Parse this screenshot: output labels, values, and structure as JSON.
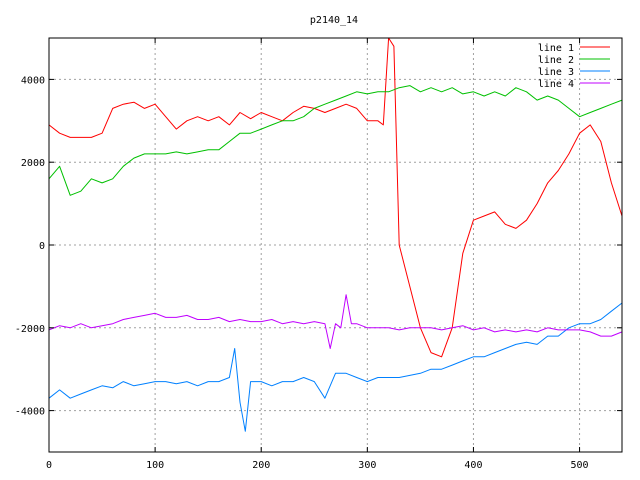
{
  "chart_data": {
    "type": "line",
    "title": "p2140_14",
    "xlabel": "",
    "ylabel": "",
    "xlim": [
      0,
      540
    ],
    "ylim": [
      -5000,
      5000
    ],
    "xticks": [
      0,
      100,
      200,
      300,
      400,
      500
    ],
    "yticks": [
      -4000,
      -2000,
      0,
      2000,
      4000
    ],
    "grid": true,
    "legend_position": "top-right",
    "series": [
      {
        "name": "line 1",
        "color": "#ff0000",
        "x": [
          0,
          10,
          20,
          30,
          40,
          50,
          60,
          70,
          80,
          90,
          100,
          110,
          120,
          130,
          140,
          150,
          160,
          170,
          180,
          190,
          200,
          210,
          220,
          230,
          240,
          250,
          260,
          270,
          280,
          290,
          300,
          310,
          315,
          320,
          325,
          330,
          340,
          350,
          360,
          370,
          380,
          390,
          400,
          410,
          420,
          430,
          440,
          450,
          460,
          470,
          480,
          490,
          500,
          510,
          520,
          530,
          540
        ],
        "values": [
          2900,
          2700,
          2600,
          2600,
          2600,
          2700,
          3300,
          3400,
          3450,
          3300,
          3400,
          3100,
          2800,
          3000,
          3100,
          3000,
          3100,
          2900,
          3200,
          3050,
          3200,
          3100,
          3000,
          3200,
          3350,
          3300,
          3200,
          3300,
          3400,
          3300,
          3000,
          3000,
          2900,
          5000,
          4800,
          0,
          -1000,
          -2000,
          -2600,
          -2700,
          -2000,
          -200,
          600,
          700,
          800,
          500,
          400,
          600,
          1000,
          1500,
          1800,
          2200,
          2700,
          2900,
          2500,
          1500,
          700
        ]
      },
      {
        "name": "line 2",
        "color": "#00c000",
        "x": [
          0,
          10,
          20,
          30,
          40,
          50,
          60,
          70,
          80,
          90,
          100,
          110,
          120,
          130,
          140,
          150,
          160,
          170,
          180,
          190,
          200,
          210,
          220,
          230,
          240,
          250,
          260,
          270,
          280,
          290,
          300,
          310,
          320,
          330,
          340,
          350,
          360,
          370,
          380,
          390,
          400,
          410,
          420,
          430,
          440,
          450,
          460,
          470,
          480,
          490,
          500,
          510,
          520,
          530,
          540
        ],
        "values": [
          1600,
          1900,
          1200,
          1300,
          1600,
          1500,
          1600,
          1900,
          2100,
          2200,
          2200,
          2200,
          2250,
          2200,
          2250,
          2300,
          2300,
          2500,
          2700,
          2700,
          2800,
          2900,
          3000,
          3000,
          3100,
          3300,
          3400,
          3500,
          3600,
          3700,
          3650,
          3700,
          3700,
          3800,
          3850,
          3700,
          3800,
          3700,
          3800,
          3650,
          3700,
          3600,
          3700,
          3600,
          3800,
          3700,
          3500,
          3600,
          3500,
          3300,
          3100,
          3200,
          3300,
          3400,
          3500
        ]
      },
      {
        "name": "line 3",
        "color": "#0080ff",
        "x": [
          0,
          10,
          20,
          30,
          40,
          50,
          60,
          70,
          80,
          90,
          100,
          110,
          120,
          130,
          140,
          150,
          160,
          170,
          175,
          180,
          185,
          190,
          200,
          210,
          220,
          230,
          240,
          250,
          260,
          270,
          280,
          290,
          300,
          310,
          320,
          330,
          340,
          350,
          360,
          370,
          380,
          390,
          400,
          410,
          420,
          430,
          440,
          450,
          460,
          470,
          480,
          490,
          500,
          510,
          520,
          530,
          540
        ],
        "values": [
          -3700,
          -3500,
          -3700,
          -3600,
          -3500,
          -3400,
          -3450,
          -3300,
          -3400,
          -3350,
          -3300,
          -3300,
          -3350,
          -3300,
          -3400,
          -3300,
          -3300,
          -3200,
          -2500,
          -3800,
          -4500,
          -3300,
          -3300,
          -3400,
          -3300,
          -3300,
          -3200,
          -3300,
          -3700,
          -3100,
          -3100,
          -3200,
          -3300,
          -3200,
          -3200,
          -3200,
          -3150,
          -3100,
          -3000,
          -3000,
          -2900,
          -2800,
          -2700,
          -2700,
          -2600,
          -2500,
          -2400,
          -2350,
          -2400,
          -2200,
          -2200,
          -2000,
          -1900,
          -1900,
          -1800,
          -1600,
          -1400
        ]
      },
      {
        "name": "line 4",
        "color": "#c000ff",
        "x": [
          0,
          10,
          20,
          30,
          40,
          50,
          60,
          70,
          80,
          90,
          100,
          110,
          120,
          130,
          140,
          150,
          160,
          170,
          180,
          190,
          200,
          210,
          220,
          230,
          240,
          250,
          260,
          265,
          270,
          275,
          280,
          285,
          290,
          300,
          310,
          320,
          330,
          340,
          350,
          360,
          370,
          380,
          390,
          400,
          410,
          420,
          430,
          440,
          450,
          460,
          470,
          480,
          490,
          500,
          510,
          520,
          530,
          540
        ],
        "values": [
          -2050,
          -1950,
          -2000,
          -1900,
          -2000,
          -1950,
          -1900,
          -1800,
          -1750,
          -1700,
          -1650,
          -1750,
          -1750,
          -1700,
          -1800,
          -1800,
          -1750,
          -1850,
          -1800,
          -1850,
          -1850,
          -1800,
          -1900,
          -1850,
          -1900,
          -1850,
          -1900,
          -2500,
          -1900,
          -2000,
          -1200,
          -1900,
          -1900,
          -2000,
          -2000,
          -2000,
          -2050,
          -2000,
          -2000,
          -2000,
          -2050,
          -2000,
          -1950,
          -2050,
          -2000,
          -2100,
          -2050,
          -2100,
          -2050,
          -2100,
          -2000,
          -2050,
          -2050,
          -2050,
          -2100,
          -2200,
          -2200,
          -2100
        ]
      }
    ]
  }
}
